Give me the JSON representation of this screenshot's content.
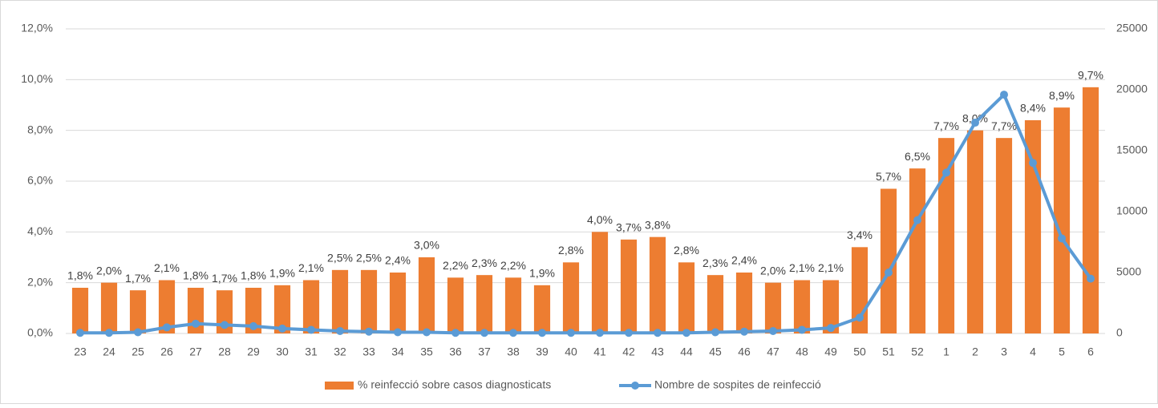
{
  "chart_data": {
    "type": "bar-line",
    "categories": [
      "23",
      "24",
      "25",
      "26",
      "27",
      "28",
      "29",
      "30",
      "31",
      "32",
      "33",
      "34",
      "35",
      "36",
      "37",
      "38",
      "39",
      "40",
      "41",
      "42",
      "43",
      "44",
      "45",
      "46",
      "47",
      "48",
      "49",
      "50",
      "51",
      "52",
      "1",
      "2",
      "3",
      "4",
      "5",
      "6"
    ],
    "series": [
      {
        "name": "% reinfecció sobre casos diagnosticats",
        "type": "bar",
        "color": "#ed7d31",
        "values": [
          1.8,
          2.0,
          1.7,
          2.1,
          1.8,
          1.7,
          1.8,
          1.9,
          2.1,
          2.5,
          2.5,
          2.4,
          3.0,
          2.2,
          2.3,
          2.2,
          1.9,
          2.8,
          4.0,
          3.7,
          3.8,
          2.8,
          2.3,
          2.4,
          2.0,
          2.1,
          2.1,
          3.4,
          5.7,
          6.5,
          7.7,
          8.0,
          7.7,
          8.4,
          8.9,
          9.7
        ],
        "value_labels": [
          "1,8%",
          "2,0%",
          "1,7%",
          "2,1%",
          "1,8%",
          "1,7%",
          "1,8%",
          "1,9%",
          "2,1%",
          "2,5%",
          "2,5%",
          "2,4%",
          "3,0%",
          "2,2%",
          "2,3%",
          "2,2%",
          "1,9%",
          "2,8%",
          "4,0%",
          "3,7%",
          "3,8%",
          "2,8%",
          "2,3%",
          "2,4%",
          "2,0%",
          "2,1%",
          "2,1%",
          "3,4%",
          "5,7%",
          "6,5%",
          "7,7%",
          "8,0%",
          "7,7%",
          "8,4%",
          "8,9%",
          "9,7%"
        ]
      },
      {
        "name": "Nombre de sospites de reinfecció",
        "type": "line",
        "axis": "y2",
        "color": "#5b9bd5",
        "values": [
          50,
          50,
          100,
          500,
          800,
          700,
          600,
          400,
          300,
          200,
          150,
          100,
          100,
          50,
          50,
          50,
          50,
          50,
          50,
          50,
          50,
          50,
          100,
          150,
          200,
          300,
          450,
          1300,
          5000,
          9300,
          13200,
          17300,
          19600,
          14000,
          7800,
          4500
        ]
      }
    ],
    "ylim": [
      0,
      12
    ],
    "yticks": [
      {
        "value": 0,
        "label": "0,0%"
      },
      {
        "value": 2,
        "label": "2,0%"
      },
      {
        "value": 4,
        "label": "4,0%"
      },
      {
        "value": 6,
        "label": "6,0%"
      },
      {
        "value": 8,
        "label": "8,0%"
      },
      {
        "value": 10,
        "label": "10,0%"
      },
      {
        "value": 12,
        "label": "12,0%"
      }
    ],
    "y2lim": [
      0,
      25000
    ],
    "y2ticks": [
      0,
      5000,
      10000,
      15000,
      20000,
      25000
    ],
    "grid": true,
    "legend": "bottom"
  }
}
